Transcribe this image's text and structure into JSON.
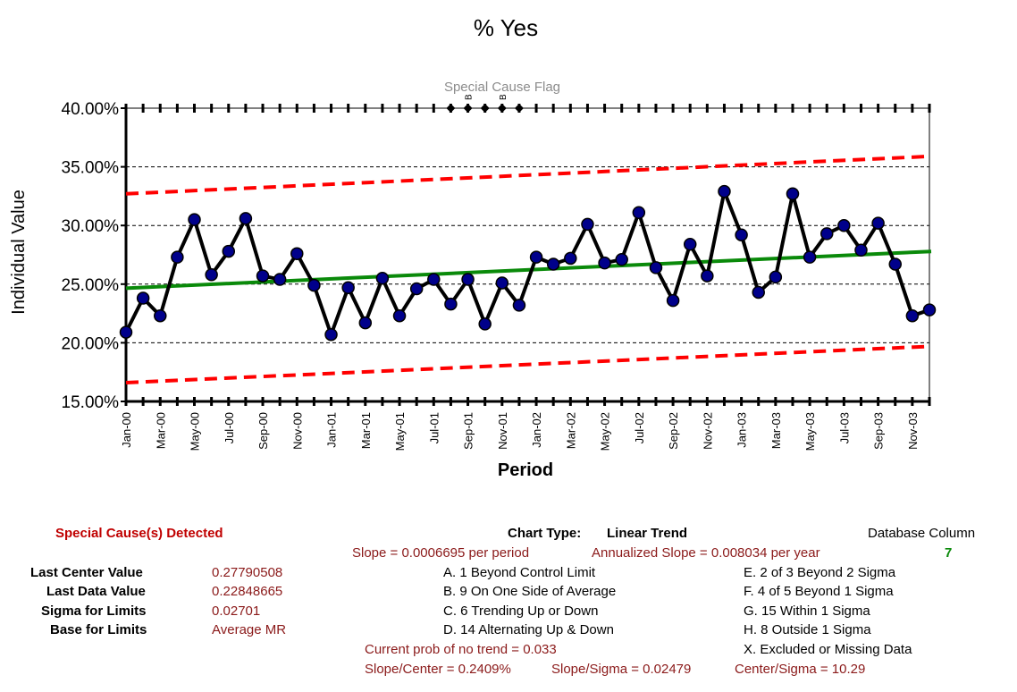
{
  "chart_data": {
    "type": "line",
    "title": "% Yes",
    "xlabel": "Period",
    "ylabel": "Individual Value",
    "flag_label": "Special Cause Flag",
    "y_ticks": [
      "40.00%",
      "35.00%",
      "30.00%",
      "25.00%",
      "20.00%",
      "15.00%"
    ],
    "y_tick_values": [
      0.4,
      0.35,
      0.3,
      0.25,
      0.2,
      0.15
    ],
    "ylim": [
      0.15,
      0.4
    ],
    "x_tick_labels": [
      {
        "label": "Jan-00",
        "index": 0
      },
      {
        "label": "Mar-00",
        "index": 2
      },
      {
        "label": "May-00",
        "index": 4
      },
      {
        "label": "Jul-00",
        "index": 6
      },
      {
        "label": "Sep-00",
        "index": 8
      },
      {
        "label": "Nov-00",
        "index": 10
      },
      {
        "label": "Jan-01",
        "index": 12
      },
      {
        "label": "Mar-01",
        "index": 14
      },
      {
        "label": "May-01",
        "index": 16
      },
      {
        "label": "Jul-01",
        "index": 18
      },
      {
        "label": "Sep-01",
        "index": 20
      },
      {
        "label": "Nov-01",
        "index": 22
      },
      {
        "label": "Jan-02",
        "index": 24
      },
      {
        "label": "Mar-02",
        "index": 26
      },
      {
        "label": "May-02",
        "index": 28
      },
      {
        "label": "Jul-02",
        "index": 30
      },
      {
        "label": "Sep-02",
        "index": 32
      },
      {
        "label": "Nov-02",
        "index": 34
      },
      {
        "label": "Jan-03",
        "index": 36
      },
      {
        "label": "Mar-03",
        "index": 38
      },
      {
        "label": "May-03",
        "index": 40
      },
      {
        "label": "Jul-03",
        "index": 42
      },
      {
        "label": "Sep-03",
        "index": 44
      },
      {
        "label": "Nov-03",
        "index": 46
      }
    ],
    "series": [
      {
        "name": "Individual Value",
        "values": [
          0.209,
          0.238,
          0.223,
          0.273,
          0.305,
          0.258,
          0.278,
          0.306,
          0.257,
          0.254,
          0.276,
          0.249,
          0.207,
          0.247,
          0.217,
          0.255,
          0.223,
          0.246,
          0.254,
          0.233,
          0.254,
          0.216,
          0.251,
          0.232,
          0.273,
          0.267,
          0.272,
          0.301,
          0.268,
          0.271,
          0.311,
          0.264,
          0.236,
          0.284,
          0.257,
          0.329,
          0.292,
          0.243,
          0.256,
          0.327,
          0.273,
          0.293,
          0.3,
          0.279,
          0.302,
          0.267,
          0.223,
          0.228
        ]
      }
    ],
    "center_line": {
      "start": 0.2465,
      "end": 0.2779
    },
    "ucl": {
      "start": 0.327,
      "end": 0.359
    },
    "lcl": {
      "start": 0.166,
      "end": 0.197
    },
    "special_cause_points": [
      19,
      20,
      21,
      22,
      23
    ],
    "flag_letters": [
      {
        "letter": "B",
        "index": 20
      },
      {
        "letter": "B",
        "index": 22
      }
    ],
    "grid": true,
    "colors": {
      "data": "#000000",
      "marker": "#00008b",
      "center": "#0a8a0a",
      "limits": "#ff0000"
    }
  },
  "panel": {
    "special_cause": "Special Cause(s) Detected",
    "last_center_label": "Last Center Value",
    "last_center_value": "0.27790508",
    "last_data_label": "Last Data Value",
    "last_data_value": "0.22848665",
    "sigma_label": "Sigma for Limits",
    "sigma_value": "0.02701",
    "base_label": "Base for Limits",
    "base_value": "Average MR",
    "chart_type_label": "Chart Type:",
    "chart_type_value": "Linear Trend",
    "slope": "Slope = 0.0006695 per period",
    "annualized": "Annualized Slope = 0.008034 per year",
    "db_column_label": "Database Column",
    "db_column_value": "7",
    "rules_left": [
      "A.  1 Beyond Control Limit",
      "B.  9 On One Side of Average",
      "C.  6 Trending Up or Down",
      "D.  14 Alternating  Up & Down"
    ],
    "rules_right": [
      "E.   2 of 3 Beyond 2 Sigma",
      "F.   4 of 5 Beyond 1 Sigma",
      "G.   15 Within 1 Sigma",
      "H.   8 Outside 1 Sigma",
      "X.   Excluded or Missing Data"
    ],
    "prob_no_trend": "Current prob of no trend = 0.033",
    "slope_center": "Slope/Center = 0.2409%",
    "slope_sigma": "Slope/Sigma = 0.02479",
    "center_sigma": "Center/Sigma = 10.29"
  }
}
